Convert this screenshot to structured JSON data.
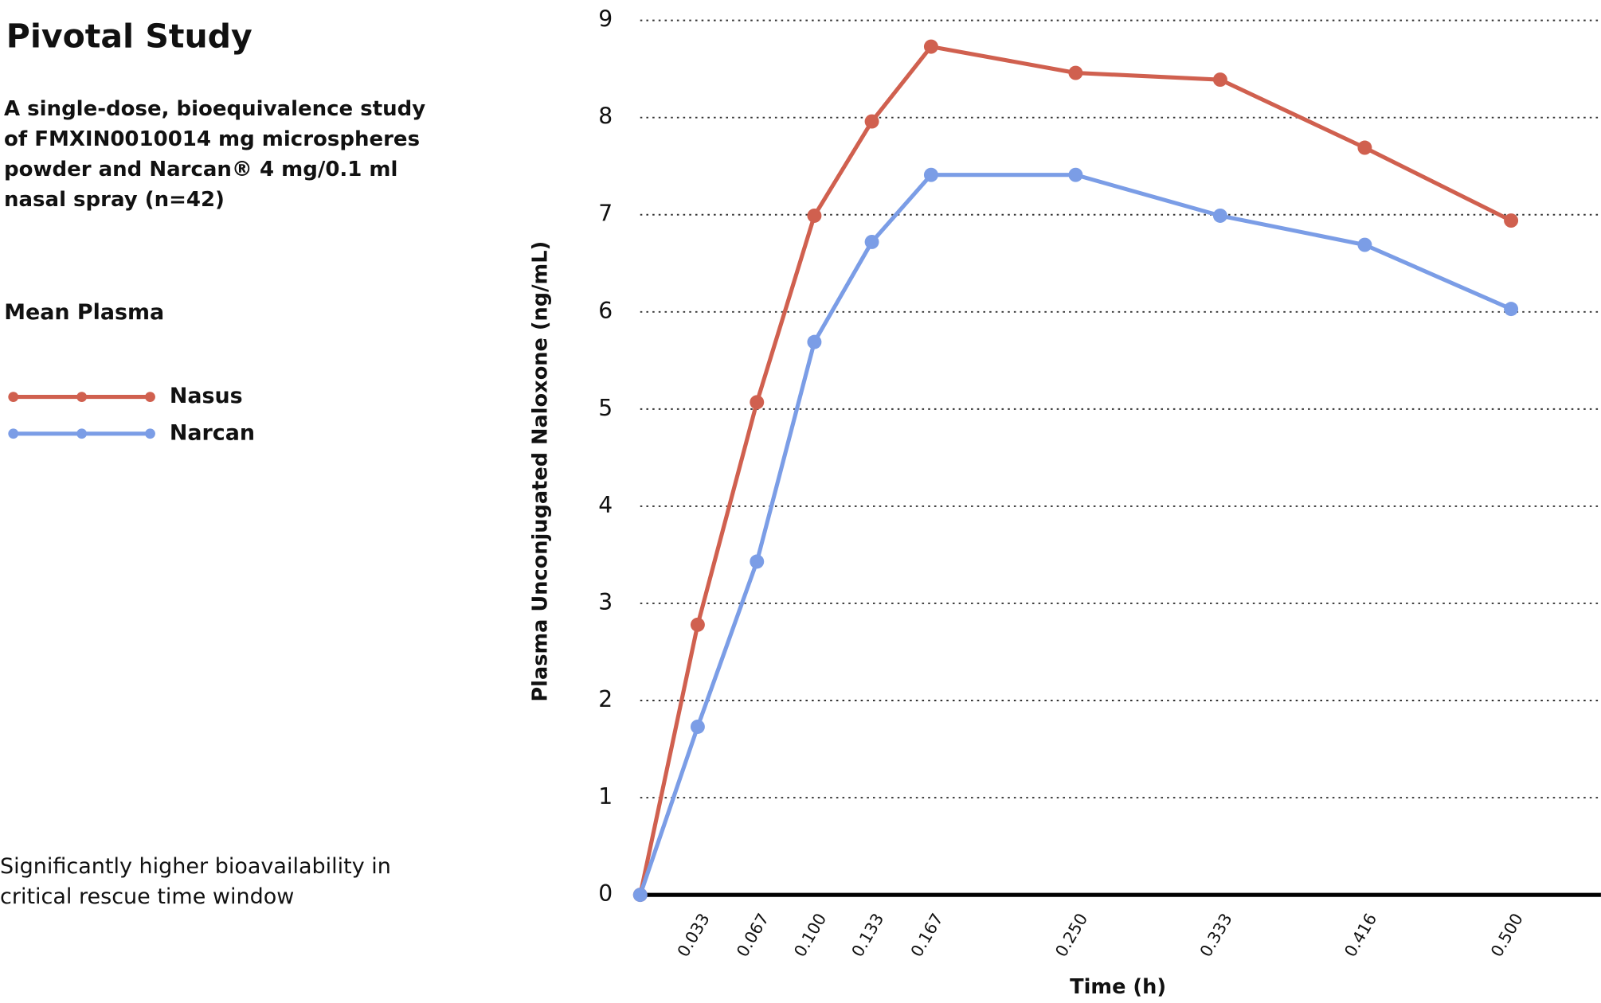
{
  "chart_data": {
    "type": "line",
    "title": "Pivotal Study",
    "subtitle": "A single-dose, bioequivalence study of FMXIN0010014 mg microspheres powder and Narcan® 4 mg/0.1 ml nasal spray (n=42)",
    "legend_title": "Mean Plasma",
    "annotation": "Significantly higher bioavailability in critical rescue time window",
    "x_label": "Time (h)",
    "y_label": "Plasma Unconjugated Naloxone (ng/mL)",
    "x": [
      0,
      0.033,
      0.067,
      0.1,
      0.133,
      0.167,
      0.25,
      0.333,
      0.416,
      0.5
    ],
    "series": [
      {
        "name": "Nasus",
        "color": "#d0604f",
        "values": [
          0,
          2.78,
          5.07,
          6.99,
          7.96,
          8.73,
          8.46,
          8.39,
          7.69,
          6.94
        ]
      },
      {
        "name": "Narcan",
        "color": "#7b9de6",
        "values": [
          0,
          1.73,
          3.43,
          5.69,
          6.72,
          7.41,
          7.41,
          6.99,
          6.69,
          6.03
        ]
      }
    ],
    "xlim": [
      0,
      0.5516
    ],
    "xticks": [
      {
        "value": 0.033,
        "label": "0.033"
      },
      {
        "value": 0.067,
        "label": "0.067"
      },
      {
        "value": 0.1,
        "label": "0.100"
      },
      {
        "value": 0.133,
        "label": "0.133"
      },
      {
        "value": 0.167,
        "label": "0.167"
      },
      {
        "value": 0.25,
        "label": "0.250"
      },
      {
        "value": 0.333,
        "label": "0.333"
      },
      {
        "value": 0.416,
        "label": "0.416"
      },
      {
        "value": 0.5,
        "label": "0.500"
      }
    ],
    "ylim": [
      0,
      9
    ],
    "yticks": [
      0,
      1,
      2,
      3,
      4,
      5,
      6,
      7,
      8,
      9
    ],
    "grid": true
  }
}
